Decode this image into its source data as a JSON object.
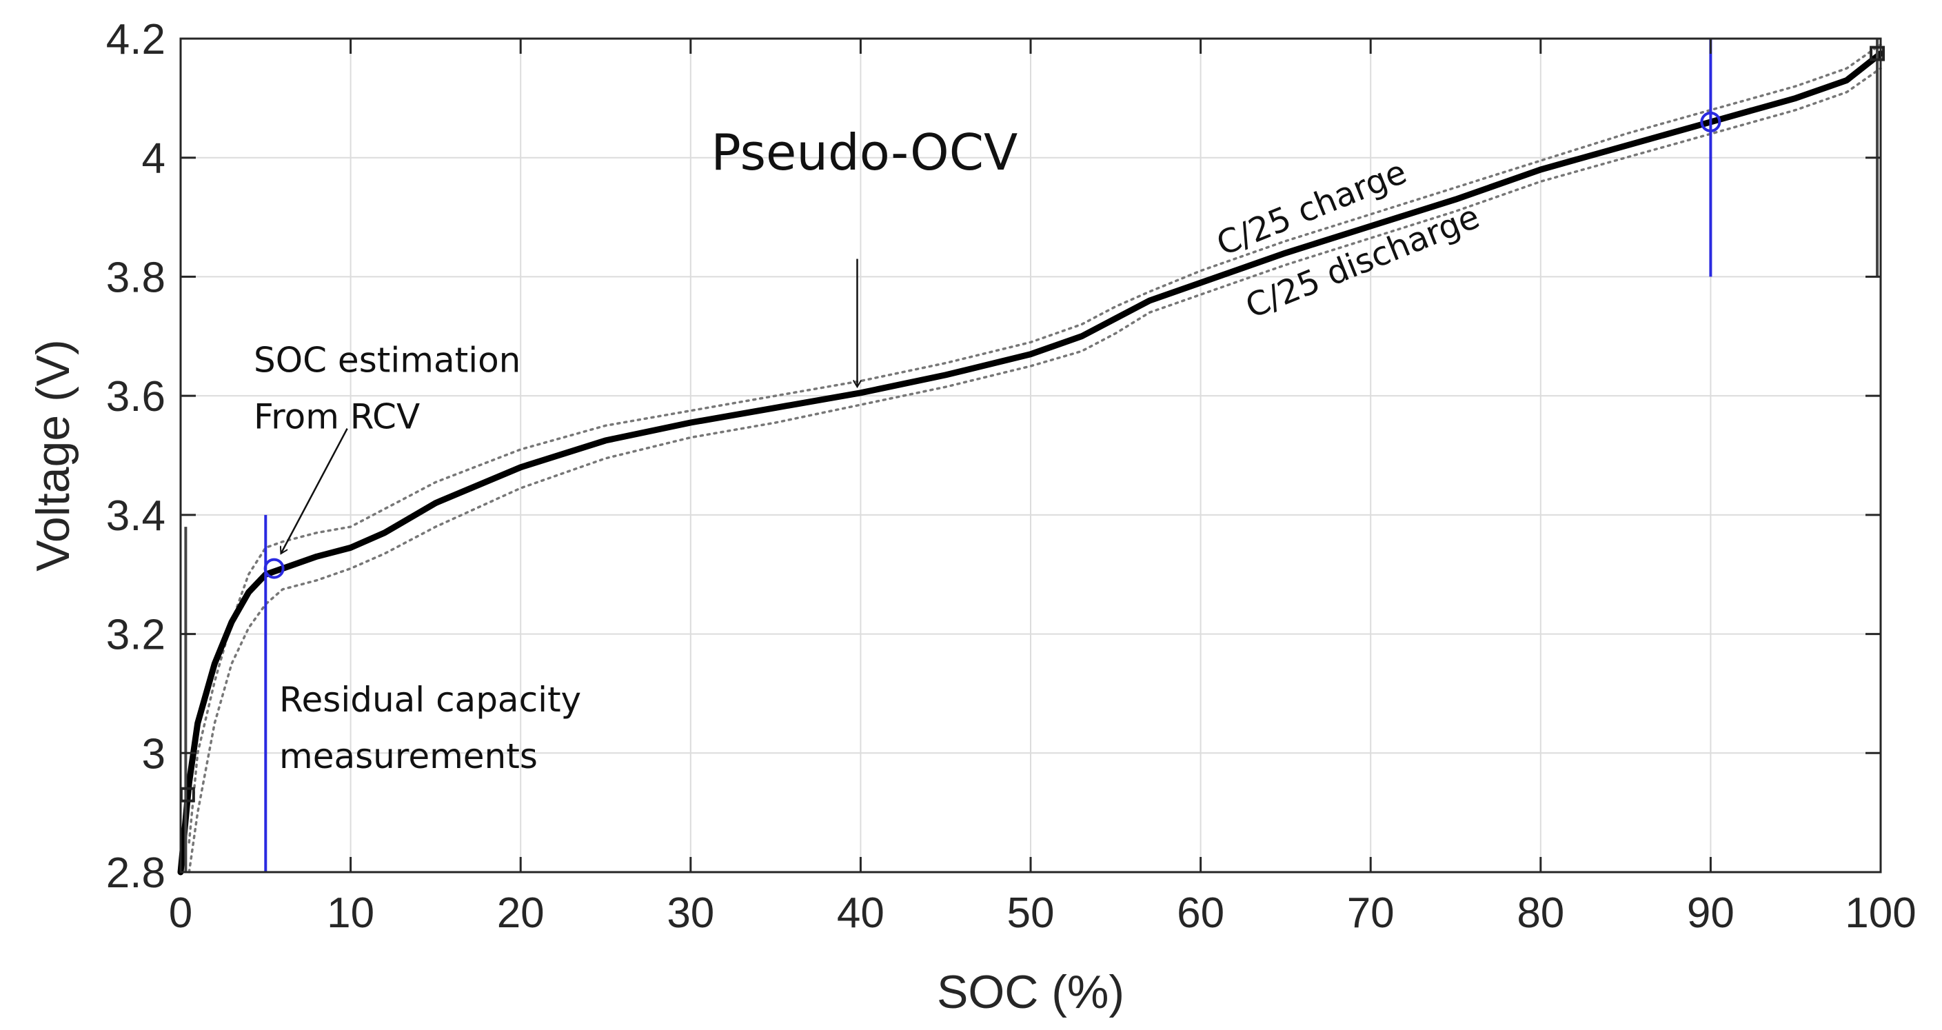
{
  "chart_data": {
    "type": "line",
    "title": "",
    "xlabel": "SOC (%)",
    "ylabel": "Voltage (V)",
    "xlim": [
      0,
      100
    ],
    "ylim": [
      2.8,
      4.2
    ],
    "xticks": [
      0,
      10,
      20,
      30,
      40,
      50,
      60,
      70,
      80,
      90,
      100
    ],
    "yticks": [
      2.8,
      3,
      3.2,
      3.4,
      3.6,
      3.8,
      4,
      4.2
    ],
    "xtick_labels": [
      "0",
      "10",
      "20",
      "30",
      "40",
      "50",
      "60",
      "70",
      "80",
      "90",
      "100"
    ],
    "ytick_labels": [
      "2.8",
      "3",
      "3.2",
      "3.4",
      "3.6",
      "3.8",
      "4",
      "4.2"
    ],
    "grid": true,
    "series": [
      {
        "name": "Pseudo-OCV",
        "style": "solid",
        "color": "#000000",
        "x": [
          0,
          0.5,
          1,
          2,
          3,
          4,
          5,
          6,
          8,
          10,
          12,
          15,
          20,
          25,
          30,
          35,
          40,
          45,
          50,
          53,
          55,
          57,
          60,
          65,
          70,
          75,
          80,
          85,
          90,
          95,
          98,
          100
        ],
        "y": [
          2.8,
          2.95,
          3.05,
          3.15,
          3.22,
          3.27,
          3.3,
          3.31,
          3.33,
          3.345,
          3.37,
          3.42,
          3.48,
          3.525,
          3.555,
          3.58,
          3.605,
          3.635,
          3.67,
          3.7,
          3.73,
          3.76,
          3.79,
          3.84,
          3.885,
          3.93,
          3.98,
          4.02,
          4.06,
          4.1,
          4.13,
          4.175
        ]
      },
      {
        "name": "C/25 charge",
        "style": "dotted",
        "color": "#777777",
        "x": [
          0.5,
          1,
          2,
          3,
          4,
          5,
          6,
          8,
          10,
          12,
          15,
          20,
          25,
          30,
          35,
          40,
          45,
          50,
          53,
          55,
          57,
          60,
          65,
          70,
          75,
          80,
          85,
          90,
          95,
          98,
          100
        ],
        "y": [
          2.85,
          3.0,
          3.12,
          3.22,
          3.3,
          3.345,
          3.355,
          3.37,
          3.38,
          3.41,
          3.455,
          3.51,
          3.55,
          3.575,
          3.6,
          3.625,
          3.655,
          3.69,
          3.72,
          3.75,
          3.775,
          3.81,
          3.86,
          3.905,
          3.95,
          3.995,
          4.04,
          4.08,
          4.12,
          4.15,
          4.19
        ]
      },
      {
        "name": "C/25 discharge",
        "style": "dotted",
        "color": "#777777",
        "x": [
          0.5,
          1,
          2,
          3,
          4,
          5,
          6,
          8,
          10,
          12,
          15,
          20,
          25,
          30,
          35,
          40,
          45,
          50,
          53,
          55,
          57,
          60,
          65,
          70,
          75,
          80,
          85,
          90,
          95,
          98,
          100
        ],
        "y": [
          2.8,
          2.9,
          3.05,
          3.15,
          3.21,
          3.25,
          3.275,
          3.29,
          3.31,
          3.335,
          3.38,
          3.445,
          3.495,
          3.53,
          3.555,
          3.585,
          3.615,
          3.65,
          3.675,
          3.705,
          3.74,
          3.77,
          3.82,
          3.865,
          3.91,
          3.96,
          4.0,
          4.04,
          4.08,
          4.11,
          4.15
        ]
      }
    ],
    "vertical_markers": [
      {
        "x": 5,
        "y_from": 2.8,
        "y_to": 3.4,
        "color": "#2a2ae0"
      },
      {
        "x": 90,
        "y_from": 3.8,
        "y_to": 4.2,
        "color": "#2a2ae0"
      },
      {
        "x": 0.3,
        "y_from": 2.8,
        "y_to": 3.38,
        "color": "#444444"
      },
      {
        "x": 99.8,
        "y_from": 3.8,
        "y_to": 4.2,
        "color": "#444444"
      }
    ],
    "circle_markers": [
      {
        "x": 5.5,
        "y": 3.31,
        "color": "#2a2ae0"
      },
      {
        "x": 90,
        "y": 4.06,
        "color": "#2a2ae0"
      }
    ],
    "square_markers": [
      {
        "x": 0.4,
        "y": 2.93,
        "color": "#222222"
      },
      {
        "x": 99.8,
        "y": 4.175,
        "color": "#222222"
      }
    ],
    "annotations": [
      {
        "id": "pseudo-ocv",
        "text": "Pseudo-OCV",
        "x": 31.2,
        "y": 3.98,
        "size": 72,
        "rotate": 0
      },
      {
        "id": "soc-est-1",
        "text": "SOC estimation",
        "x": 4.3,
        "y": 3.64,
        "size": 50,
        "rotate": 0
      },
      {
        "id": "soc-est-2",
        "text": "From RCV",
        "x": 4.3,
        "y": 3.545,
        "size": 50,
        "rotate": 0
      },
      {
        "id": "residual-1",
        "text": "Residual capacity",
        "x": 5.8,
        "y": 3.07,
        "size": 50,
        "rotate": 0
      },
      {
        "id": "residual-2",
        "text": "measurements",
        "x": 5.8,
        "y": 2.975,
        "size": 50,
        "rotate": 0
      },
      {
        "id": "c25-charge",
        "text": "C/25 charge",
        "x": 61.3,
        "y": 3.835,
        "size": 48,
        "rotate": -22
      },
      {
        "id": "c25-discharge",
        "text": "C/25 discharge",
        "x": 63.0,
        "y": 3.73,
        "size": 48,
        "rotate": -22
      }
    ],
    "arrows": [
      {
        "from": [
          39.8,
          3.83
        ],
        "to": [
          39.8,
          3.615
        ]
      },
      {
        "from": [
          9.8,
          3.545
        ],
        "to": [
          5.9,
          3.335
        ]
      }
    ]
  }
}
